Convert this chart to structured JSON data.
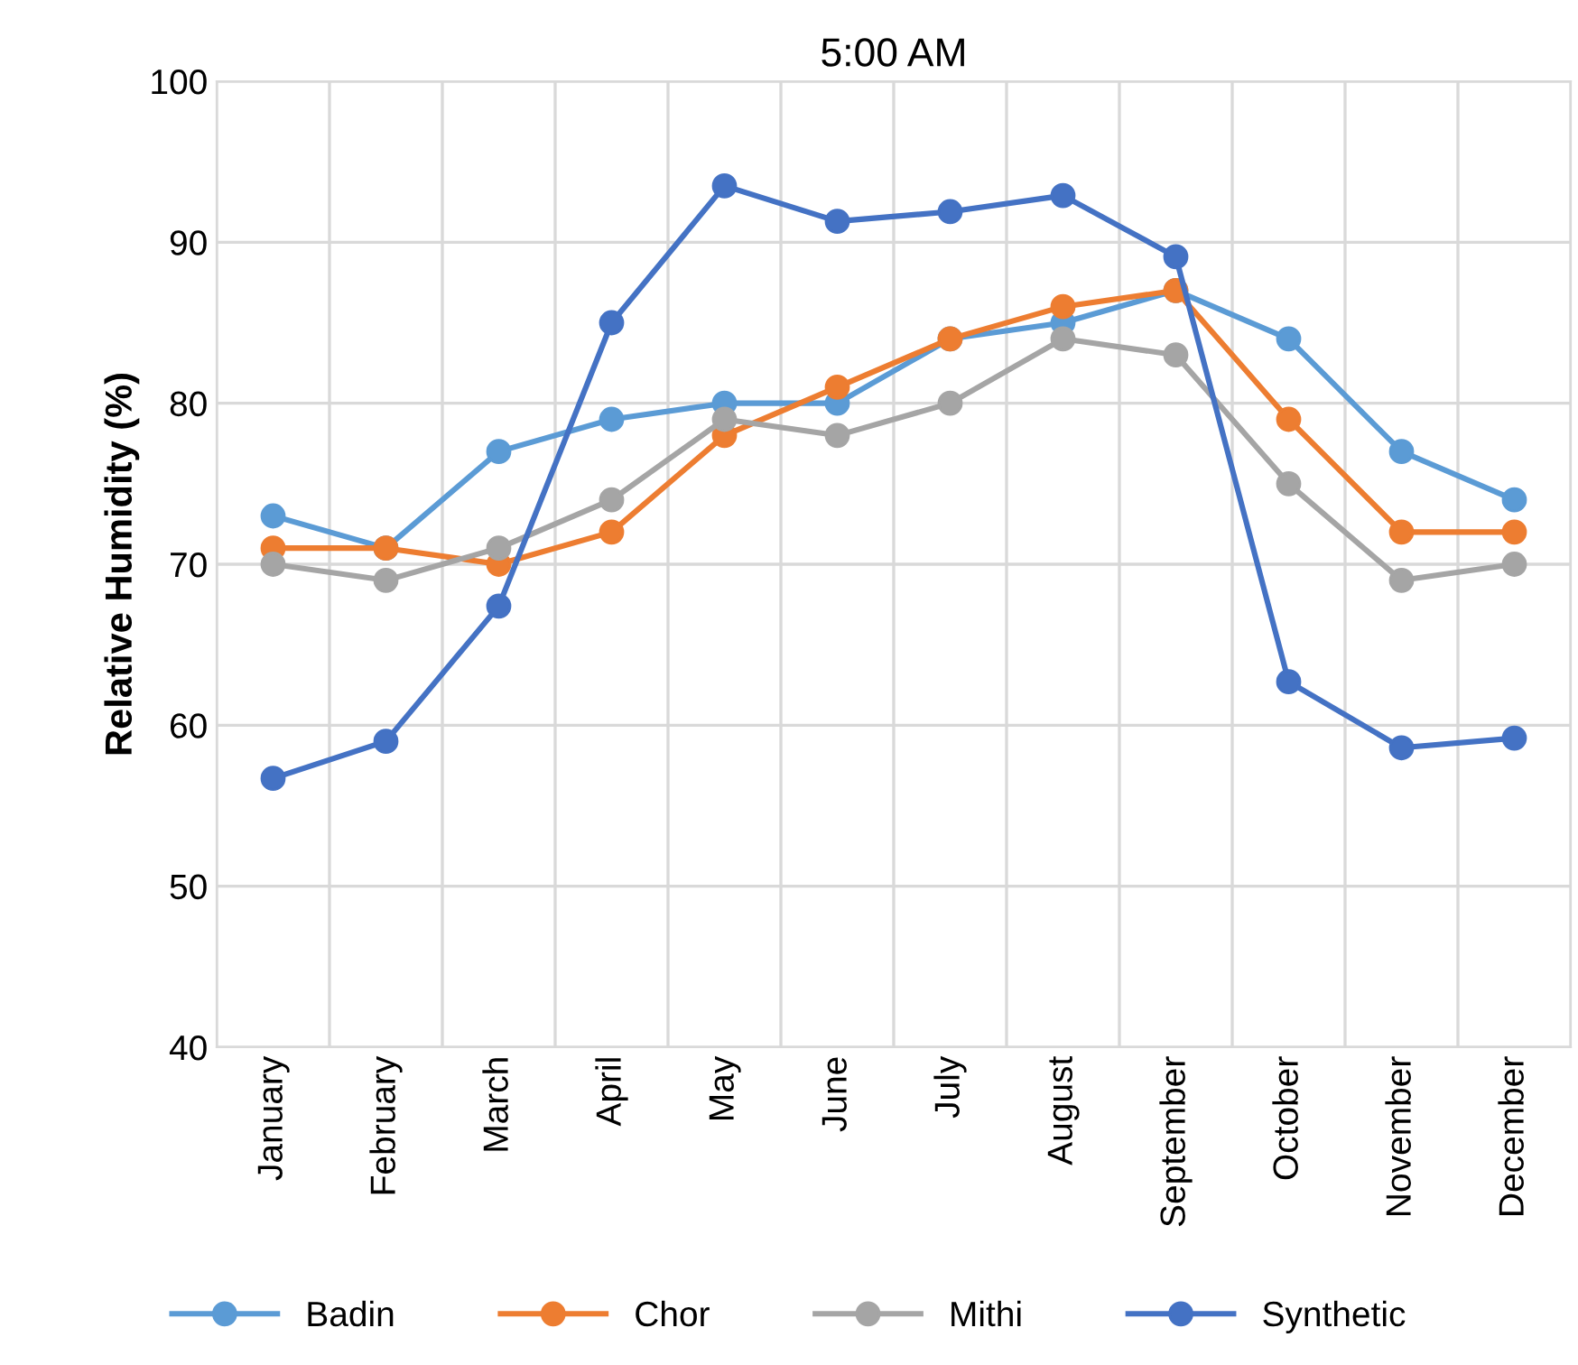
{
  "chart_data": {
    "type": "line",
    "title": "5:00 AM",
    "ylabel": "Relative Humidity (%)",
    "categories": [
      "January",
      "February",
      "March",
      "April",
      "May",
      "June",
      "July",
      "August",
      "September",
      "October",
      "November",
      "December"
    ],
    "series": [
      {
        "name": "Badin",
        "color": "#5b9bd5",
        "values": [
          73,
          71,
          77,
          79,
          80,
          80,
          84,
          85,
          87,
          84,
          77,
          74
        ]
      },
      {
        "name": "Chor",
        "color": "#ed7d31",
        "values": [
          71,
          71,
          70,
          72,
          78,
          81,
          84,
          86,
          87,
          79,
          72,
          72
        ]
      },
      {
        "name": "Mithi",
        "color": "#a5a5a5",
        "values": [
          70,
          69,
          71,
          74,
          79,
          78,
          80,
          84,
          83,
          75,
          69,
          70
        ]
      },
      {
        "name": "Synthetic",
        "color": "#4472c4",
        "values": [
          56.7,
          59,
          67.4,
          85,
          93.5,
          91.3,
          91.9,
          92.9,
          89.1,
          62.7,
          58.6,
          59.2
        ]
      }
    ],
    "ylim": [
      40,
      100
    ],
    "yticks": [
      40,
      50,
      60,
      70,
      80,
      90,
      100
    ],
    "grid": true,
    "legend": "bottom",
    "marker": "circle",
    "line_style": "solid"
  }
}
